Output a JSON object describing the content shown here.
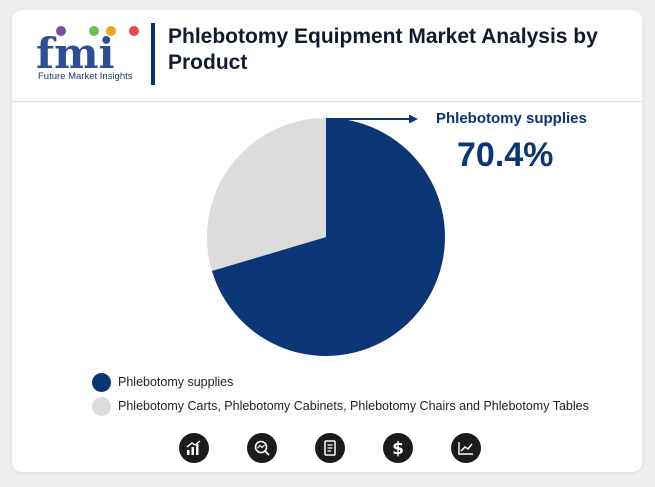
{
  "brand": {
    "logo_letters": "fmi",
    "logo_text": "Future Market Insights"
  },
  "title": "Phlebotomy Equipment Market Analysis by Product",
  "colors": {
    "primary": "#0b3574",
    "secondary": "#dcdcdc",
    "logo_purple": "#7a4fa0",
    "logo_green": "#6cbf4a",
    "logo_orange": "#f3a21b",
    "logo_red": "#e5484d"
  },
  "callout": {
    "label": "Phlebotomy supplies",
    "value": "70.4%"
  },
  "chart_data": {
    "type": "pie",
    "title": "Phlebotomy Equipment Market Analysis by Product",
    "categories": [
      "Phlebotomy supplies",
      "Phlebotomy Carts, Phlebotomy Cabinets, Phlebotomy Chairs and Phlebotomy Tables"
    ],
    "values": [
      70.4,
      29.6
    ],
    "colors": [
      "#0b3574",
      "#dcdcdc"
    ],
    "legend_position": "bottom-left"
  },
  "footer_icons": [
    "growth-chart-icon",
    "magnifier-trend-icon",
    "document-icon",
    "dollar-icon",
    "line-chart-icon"
  ]
}
